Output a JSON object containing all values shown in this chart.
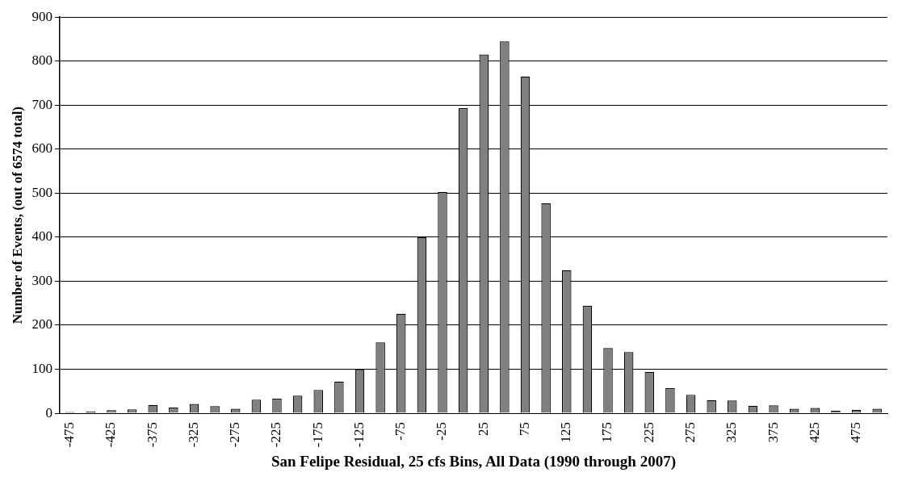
{
  "chart_data": {
    "type": "bar",
    "xlabel": "San Felipe Residual, 25 cfs Bins, All Data (1990 through 2007)",
    "ylabel": "Number of Events, (out of 6574 total)",
    "categories": [
      "-475",
      null,
      "-425",
      null,
      "-375",
      null,
      "-325",
      null,
      "-275",
      null,
      "-225",
      null,
      "-175",
      null,
      "-125",
      null,
      "-75",
      null,
      "-25",
      null,
      "25",
      null,
      "75",
      null,
      "125",
      null,
      "175",
      null,
      "225",
      null,
      "275",
      null,
      "325",
      null,
      "375",
      null,
      "425",
      null,
      "475",
      null
    ],
    "values": [
      3,
      4,
      7,
      9,
      19,
      13,
      21,
      16,
      10,
      31,
      33,
      40,
      53,
      72,
      100,
      161,
      226,
      400,
      503,
      693,
      815,
      845,
      765,
      477,
      325,
      244,
      148,
      139,
      94,
      57,
      42,
      30,
      29,
      17,
      18,
      10,
      12,
      6,
      8,
      10
    ],
    "color": "#808080",
    "ylim": [
      0,
      900
    ],
    "yticks": [
      0,
      100,
      200,
      300,
      400,
      500,
      600,
      700,
      800,
      900
    ],
    "grid": "y",
    "legend": false
  }
}
